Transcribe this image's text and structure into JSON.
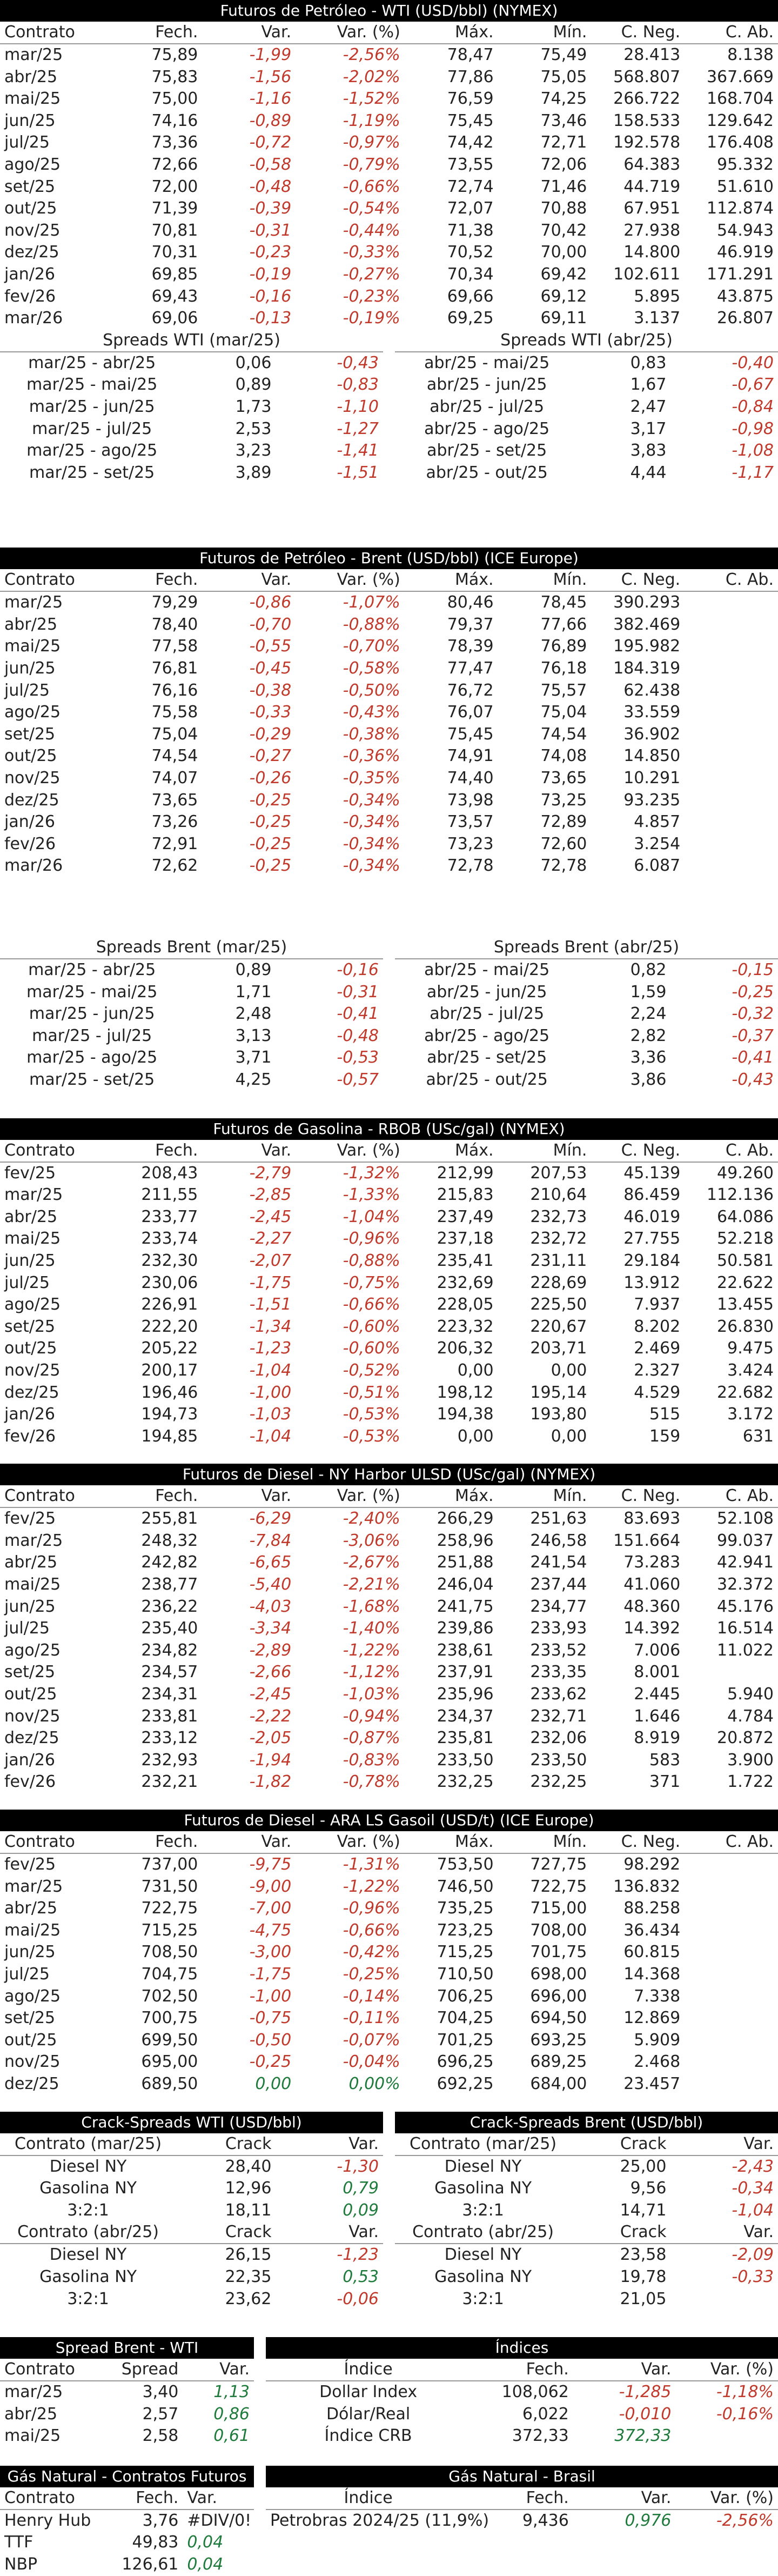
{
  "cols": [
    "Contrato",
    "Fech.",
    "Var.",
    "Var. (%)",
    "Máx.",
    "Mín.",
    "C. Neg.",
    "C. Ab."
  ],
  "wti": {
    "title": "Futuros de Petróleo - WTI (USD/bbl) (NYMEX)",
    "rows": [
      [
        "mar/25",
        "75,89",
        "-1,99",
        "-2,56%",
        "78,47",
        "75,49",
        "28.413",
        "8.138"
      ],
      [
        "abr/25",
        "75,83",
        "-1,56",
        "-2,02%",
        "77,86",
        "75,05",
        "568.807",
        "367.669"
      ],
      [
        "mai/25",
        "75,00",
        "-1,16",
        "-1,52%",
        "76,59",
        "74,25",
        "266.722",
        "168.704"
      ],
      [
        "jun/25",
        "74,16",
        "-0,89",
        "-1,19%",
        "75,45",
        "73,46",
        "158.533",
        "129.642"
      ],
      [
        "jul/25",
        "73,36",
        "-0,72",
        "-0,97%",
        "74,42",
        "72,71",
        "192.578",
        "176.408"
      ],
      [
        "ago/25",
        "72,66",
        "-0,58",
        "-0,79%",
        "73,55",
        "72,06",
        "64.383",
        "95.332"
      ],
      [
        "set/25",
        "72,00",
        "-0,48",
        "-0,66%",
        "72,74",
        "71,46",
        "44.719",
        "51.610"
      ],
      [
        "out/25",
        "71,39",
        "-0,39",
        "-0,54%",
        "72,07",
        "70,88",
        "67.951",
        "112.874"
      ],
      [
        "nov/25",
        "70,81",
        "-0,31",
        "-0,44%",
        "71,38",
        "70,42",
        "27.938",
        "54.943"
      ],
      [
        "dez/25",
        "70,31",
        "-0,23",
        "-0,33%",
        "70,52",
        "70,00",
        "14.800",
        "46.919"
      ],
      [
        "jan/26",
        "69,85",
        "-0,19",
        "-0,27%",
        "70,34",
        "69,42",
        "102.611",
        "171.291"
      ],
      [
        "fev/26",
        "69,43",
        "-0,16",
        "-0,23%",
        "69,66",
        "69,12",
        "5.895",
        "43.875"
      ],
      [
        "mar/26",
        "69,06",
        "-0,13",
        "-0,19%",
        "69,25",
        "69,11",
        "3.137",
        "26.807"
      ]
    ],
    "spreads_left_title": "Spreads WTI (mar/25)",
    "spreads_left": [
      [
        "mar/25 - abr/25",
        "0,06",
        "-0,43"
      ],
      [
        "mar/25 - mai/25",
        "0,89",
        "-0,83"
      ],
      [
        "mar/25 - jun/25",
        "1,73",
        "-1,10"
      ],
      [
        "mar/25 - jul/25",
        "2,53",
        "-1,27"
      ],
      [
        "mar/25 - ago/25",
        "3,23",
        "-1,41"
      ],
      [
        "mar/25 - set/25",
        "3,89",
        "-1,51"
      ]
    ],
    "spreads_right_title": "Spreads WTI (abr/25)",
    "spreads_right": [
      [
        "abr/25 - mai/25",
        "0,83",
        "-0,40"
      ],
      [
        "abr/25 - jun/25",
        "1,67",
        "-0,67"
      ],
      [
        "abr/25 - jul/25",
        "2,47",
        "-0,84"
      ],
      [
        "abr/25 - ago/25",
        "3,17",
        "-0,98"
      ],
      [
        "abr/25 - set/25",
        "3,83",
        "-1,08"
      ],
      [
        "abr/25 - out/25",
        "4,44",
        "-1,17"
      ]
    ]
  },
  "brent": {
    "title": "Futuros de Petróleo - Brent (USD/bbl) (ICE Europe)",
    "rows": [
      [
        "mar/25",
        "79,29",
        "-0,86",
        "-1,07%",
        "80,46",
        "78,45",
        "390.293",
        ""
      ],
      [
        "abr/25",
        "78,40",
        "-0,70",
        "-0,88%",
        "79,37",
        "77,66",
        "382.469",
        ""
      ],
      [
        "mai/25",
        "77,58",
        "-0,55",
        "-0,70%",
        "78,39",
        "76,89",
        "195.982",
        ""
      ],
      [
        "jun/25",
        "76,81",
        "-0,45",
        "-0,58%",
        "77,47",
        "76,18",
        "184.319",
        ""
      ],
      [
        "jul/25",
        "76,16",
        "-0,38",
        "-0,50%",
        "76,72",
        "75,57",
        "62.438",
        ""
      ],
      [
        "ago/25",
        "75,58",
        "-0,33",
        "-0,43%",
        "76,07",
        "75,04",
        "33.559",
        ""
      ],
      [
        "set/25",
        "75,04",
        "-0,29",
        "-0,38%",
        "75,45",
        "74,54",
        "36.902",
        ""
      ],
      [
        "out/25",
        "74,54",
        "-0,27",
        "-0,36%",
        "74,91",
        "74,08",
        "14.850",
        ""
      ],
      [
        "nov/25",
        "74,07",
        "-0,26",
        "-0,35%",
        "74,40",
        "73,65",
        "10.291",
        ""
      ],
      [
        "dez/25",
        "73,65",
        "-0,25",
        "-0,34%",
        "73,98",
        "73,25",
        "93.235",
        ""
      ],
      [
        "jan/26",
        "73,26",
        "-0,25",
        "-0,34%",
        "73,57",
        "72,89",
        "4.857",
        ""
      ],
      [
        "fev/26",
        "72,91",
        "-0,25",
        "-0,34%",
        "73,23",
        "72,60",
        "3.254",
        ""
      ],
      [
        "mar/26",
        "72,62",
        "-0,25",
        "-0,34%",
        "72,78",
        "72,78",
        "6.087",
        ""
      ]
    ],
    "spreads_left_title": "Spreads Brent (mar/25)",
    "spreads_left": [
      [
        "mar/25 - abr/25",
        "0,89",
        "-0,16"
      ],
      [
        "mar/25 - mai/25",
        "1,71",
        "-0,31"
      ],
      [
        "mar/25 - jun/25",
        "2,48",
        "-0,41"
      ],
      [
        "mar/25 - jul/25",
        "3,13",
        "-0,48"
      ],
      [
        "mar/25 - ago/25",
        "3,71",
        "-0,53"
      ],
      [
        "mar/25 - set/25",
        "4,25",
        "-0,57"
      ]
    ],
    "spreads_right_title": "Spreads Brent (abr/25)",
    "spreads_right": [
      [
        "abr/25 - mai/25",
        "0,82",
        "-0,15"
      ],
      [
        "abr/25 - jun/25",
        "1,59",
        "-0,25"
      ],
      [
        "abr/25 - jul/25",
        "2,24",
        "-0,32"
      ],
      [
        "abr/25 - ago/25",
        "2,82",
        "-0,37"
      ],
      [
        "abr/25 - set/25",
        "3,36",
        "-0,41"
      ],
      [
        "abr/25 - out/25",
        "3,86",
        "-0,43"
      ]
    ]
  },
  "rbob": {
    "title": "Futuros de Gasolina - RBOB (USc/gal) (NYMEX)",
    "rows": [
      [
        "fev/25",
        "208,43",
        "-2,79",
        "-1,32%",
        "212,99",
        "207,53",
        "45.139",
        "49.260"
      ],
      [
        "mar/25",
        "211,55",
        "-2,85",
        "-1,33%",
        "215,83",
        "210,64",
        "86.459",
        "112.136"
      ],
      [
        "abr/25",
        "233,77",
        "-2,45",
        "-1,04%",
        "237,49",
        "232,73",
        "46.019",
        "64.086"
      ],
      [
        "mai/25",
        "233,74",
        "-2,27",
        "-0,96%",
        "237,18",
        "232,72",
        "27.755",
        "52.218"
      ],
      [
        "jun/25",
        "232,30",
        "-2,07",
        "-0,88%",
        "235,41",
        "231,11",
        "29.184",
        "50.581"
      ],
      [
        "jul/25",
        "230,06",
        "-1,75",
        "-0,75%",
        "232,69",
        "228,69",
        "13.912",
        "22.622"
      ],
      [
        "ago/25",
        "226,91",
        "-1,51",
        "-0,66%",
        "228,05",
        "225,50",
        "7.937",
        "13.455"
      ],
      [
        "set/25",
        "222,20",
        "-1,34",
        "-0,60%",
        "223,32",
        "220,67",
        "8.202",
        "26.830"
      ],
      [
        "out/25",
        "205,22",
        "-1,23",
        "-0,60%",
        "206,32",
        "203,71",
        "2.469",
        "9.475"
      ],
      [
        "nov/25",
        "200,17",
        "-1,04",
        "-0,52%",
        "0,00",
        "0,00",
        "2.327",
        "3.424"
      ],
      [
        "dez/25",
        "196,46",
        "-1,00",
        "-0,51%",
        "198,12",
        "195,14",
        "4.529",
        "22.682"
      ],
      [
        "jan/26",
        "194,73",
        "-1,03",
        "-0,53%",
        "194,38",
        "193,80",
        "515",
        "3.172"
      ],
      [
        "fev/26",
        "194,85",
        "-1,04",
        "-0,53%",
        "0,00",
        "0,00",
        "159",
        "631"
      ]
    ]
  },
  "ulsd": {
    "title": "Futuros de Diesel - NY Harbor ULSD (USc/gal) (NYMEX)",
    "rows": [
      [
        "fev/25",
        "255,81",
        "-6,29",
        "-2,40%",
        "266,29",
        "251,63",
        "83.693",
        "52.108"
      ],
      [
        "mar/25",
        "248,32",
        "-7,84",
        "-3,06%",
        "258,96",
        "246,58",
        "151.664",
        "99.037"
      ],
      [
        "abr/25",
        "242,82",
        "-6,65",
        "-2,67%",
        "251,88",
        "241,54",
        "73.283",
        "42.941"
      ],
      [
        "mai/25",
        "238,77",
        "-5,40",
        "-2,21%",
        "246,04",
        "237,44",
        "41.060",
        "32.372"
      ],
      [
        "jun/25",
        "236,22",
        "-4,03",
        "-1,68%",
        "241,75",
        "234,77",
        "48.360",
        "45.176"
      ],
      [
        "jul/25",
        "235,40",
        "-3,34",
        "-1,40%",
        "239,86",
        "233,93",
        "14.392",
        "16.514"
      ],
      [
        "ago/25",
        "234,82",
        "-2,89",
        "-1,22%",
        "238,61",
        "233,52",
        "7.006",
        "11.022"
      ],
      [
        "set/25",
        "234,57",
        "-2,66",
        "-1,12%",
        "237,91",
        "233,35",
        "8.001",
        ""
      ],
      [
        "out/25",
        "234,31",
        "-2,45",
        "-1,03%",
        "235,96",
        "233,62",
        "2.445",
        "5.940"
      ],
      [
        "nov/25",
        "233,81",
        "-2,22",
        "-0,94%",
        "234,37",
        "232,71",
        "1.646",
        "4.784"
      ],
      [
        "dez/25",
        "233,12",
        "-2,05",
        "-0,87%",
        "235,81",
        "232,06",
        "8.919",
        "20.872"
      ],
      [
        "jan/26",
        "232,93",
        "-1,94",
        "-0,83%",
        "233,50",
        "233,50",
        "583",
        "3.900"
      ],
      [
        "fev/26",
        "232,21",
        "-1,82",
        "-0,78%",
        "232,25",
        "232,25",
        "371",
        "1.722"
      ]
    ]
  },
  "gasoil": {
    "title": "Futuros de Diesel - ARA LS Gasoil (USD/t) (ICE Europe)",
    "rows": [
      [
        "fev/25",
        "737,00",
        "-9,75",
        "-1,31%",
        "753,50",
        "727,75",
        "98.292",
        ""
      ],
      [
        "mar/25",
        "731,50",
        "-9,00",
        "-1,22%",
        "746,50",
        "722,75",
        "136.832",
        ""
      ],
      [
        "abr/25",
        "722,75",
        "-7,00",
        "-0,96%",
        "735,25",
        "715,00",
        "88.258",
        ""
      ],
      [
        "mai/25",
        "715,25",
        "-4,75",
        "-0,66%",
        "723,25",
        "708,00",
        "36.434",
        ""
      ],
      [
        "jun/25",
        "708,50",
        "-3,00",
        "-0,42%",
        "715,25",
        "701,75",
        "60.815",
        ""
      ],
      [
        "jul/25",
        "704,75",
        "-1,75",
        "-0,25%",
        "710,50",
        "698,00",
        "14.368",
        ""
      ],
      [
        "ago/25",
        "702,50",
        "-1,00",
        "-0,14%",
        "706,25",
        "696,00",
        "7.338",
        ""
      ],
      [
        "set/25",
        "700,75",
        "-0,75",
        "-0,11%",
        "704,25",
        "694,50",
        "12.869",
        ""
      ],
      [
        "out/25",
        "699,50",
        "-0,50",
        "-0,07%",
        "701,25",
        "693,25",
        "5.909",
        ""
      ],
      [
        "nov/25",
        "695,00",
        "-0,25",
        "-0,04%",
        "696,25",
        "689,25",
        "2.468",
        ""
      ],
      [
        "dez/25",
        "689,50",
        "0,00",
        "0,00%",
        "692,25",
        "684,00",
        "23.457",
        ""
      ]
    ]
  },
  "crack_wti": {
    "title": "Crack-Spreads WTI (USD/bbl)",
    "h1": [
      "Contrato (mar/25)",
      "Crack",
      "Var."
    ],
    "rows1": [
      [
        "Diesel NY",
        "28,40",
        "-1,30"
      ],
      [
        "Gasolina NY",
        "12,96",
        "0,79"
      ],
      [
        "3:2:1",
        "18,11",
        "0,09"
      ]
    ],
    "h2": [
      "Contrato (abr/25)",
      "Crack",
      "Var."
    ],
    "rows2": [
      [
        "Diesel NY",
        "26,15",
        "-1,23"
      ],
      [
        "Gasolina NY",
        "22,35",
        "0,53"
      ],
      [
        "3:2:1",
        "23,62",
        "-0,06"
      ]
    ]
  },
  "crack_brent": {
    "title": "Crack-Spreads Brent (USD/bbl)",
    "h1": [
      "Contrato (mar/25)",
      "Crack",
      "Var."
    ],
    "rows1": [
      [
        "Diesel NY",
        "25,00",
        "-2,43"
      ],
      [
        "Gasolina NY",
        "9,56",
        "-0,34"
      ],
      [
        "3:2:1",
        "14,71",
        "-1,04"
      ]
    ],
    "h2": [
      "Contrato (abr/25)",
      "Crack",
      "Var."
    ],
    "rows2": [
      [
        "Diesel NY",
        "23,58",
        "-2,09"
      ],
      [
        "Gasolina NY",
        "19,78",
        "-0,33"
      ],
      [
        "3:2:1",
        "21,05",
        ""
      ]
    ]
  },
  "spread_bw": {
    "title": "Spread Brent - WTI",
    "head": [
      "Contrato",
      "Spread",
      "Var."
    ],
    "rows": [
      [
        "mar/25",
        "3,40",
        "1,13"
      ],
      [
        "abr/25",
        "2,57",
        "0,86"
      ],
      [
        "mai/25",
        "2,58",
        "0,61"
      ]
    ]
  },
  "indices": {
    "title": "Índices",
    "head": [
      "Índice",
      "Fech.",
      "Var.",
      "Var. (%)"
    ],
    "rows": [
      [
        "Dollar Index",
        "108,062",
        "-1,285",
        "-1,18%"
      ],
      [
        "Dólar/Real",
        "6,022",
        "-0,010",
        "-0,16%"
      ],
      [
        "Índice CRB",
        "372,33",
        "372,33",
        ""
      ]
    ]
  },
  "gas_fut": {
    "title": "Gás Natural - Contratos Futuros",
    "head": [
      "Contrato",
      "Fech.",
      "Var."
    ],
    "rows": [
      [
        "Henry Hub",
        "3,76",
        "#DIV/0!"
      ],
      [
        "TTF",
        "49,83",
        "0,04"
      ],
      [
        "NBP",
        "126,61",
        "0,04"
      ]
    ]
  },
  "gas_br": {
    "title": "Gás Natural - Brasil",
    "head": [
      "Índice",
      "Fech.",
      "Var.",
      "Var. (%)"
    ],
    "rows": [
      [
        "Petrobras 2024/25 (11,9%)",
        "9,436",
        "0,976",
        "-2,56%"
      ]
    ]
  }
}
